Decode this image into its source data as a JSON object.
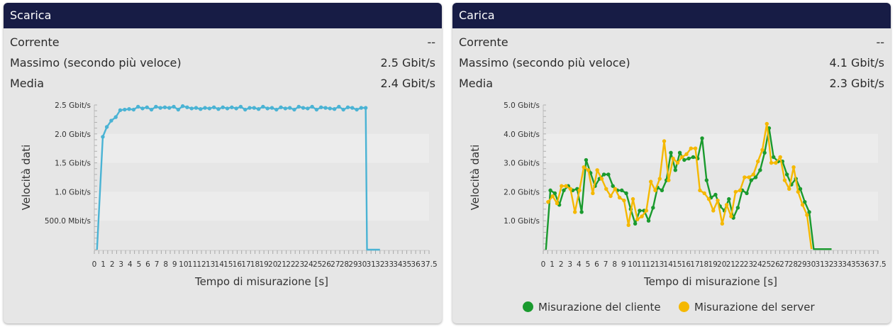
{
  "panels": {
    "download": {
      "title": "Scarica",
      "stats": [
        {
          "label": "Corrente",
          "value": "--"
        },
        {
          "label": "Massimo (secondo più veloce)",
          "value": "2.5 Gbit/s"
        },
        {
          "label": "Media",
          "value": "2.4 Gbit/s"
        }
      ]
    },
    "upload": {
      "title": "Carica",
      "stats": [
        {
          "label": "Corrente",
          "value": "--"
        },
        {
          "label": "Massimo (secondo più veloce)",
          "value": "4.1 Gbit/s"
        },
        {
          "label": "Media",
          "value": "2.3 Gbit/s"
        }
      ],
      "legend": [
        {
          "label": "Misurazione del cliente",
          "color": "#1a9a2e"
        },
        {
          "label": "Misurazione del server",
          "color": "#f5b800"
        }
      ]
    }
  },
  "chart_data": [
    {
      "type": "line",
      "xlabel": "Tempo di misurazione [s]",
      "ylabel": "Velocità dati",
      "xlim": [
        0,
        37.5
      ],
      "ylim": [
        0,
        2.5
      ],
      "y_ticks": [
        {
          "value": 0.5,
          "label": "500.0 Mbit/s"
        },
        {
          "value": 1.0,
          "label": "1.0 Gbit/s"
        },
        {
          "value": 1.5,
          "label": "1.5 Gbit/s"
        },
        {
          "value": 2.0,
          "label": "2.0 Gbit/s"
        },
        {
          "value": 2.5,
          "label": "2.5 Gbit/s"
        }
      ],
      "x_tick_labels": [
        "0",
        "1",
        "2",
        "3",
        "4",
        "5",
        "6",
        "7",
        "8",
        "9",
        "10",
        "11",
        "12",
        "13",
        "14",
        "15",
        "16",
        "17",
        "18",
        "19",
        "20",
        "21",
        "22",
        "23",
        "24",
        "25",
        "26",
        "27",
        "28",
        "29",
        "30",
        "31",
        "32",
        "33",
        "34",
        "35",
        "36",
        "37.5"
      ],
      "color": "#4ab3d4",
      "series": [
        {
          "x": [
            0.3,
            0.95,
            1.4,
            1.9,
            2.4,
            2.9,
            3.4,
            3.9,
            4.4,
            4.9,
            5.4,
            5.9,
            6.4,
            6.9,
            7.4,
            7.9,
            8.4,
            8.9,
            9.4,
            9.9,
            10.4,
            10.9,
            11.4,
            11.9,
            12.4,
            12.9,
            13.4,
            13.9,
            14.4,
            14.9,
            15.4,
            15.9,
            16.4,
            16.9,
            17.4,
            17.9,
            18.4,
            18.9,
            19.4,
            19.9,
            20.4,
            20.9,
            21.4,
            21.9,
            22.4,
            22.9,
            23.4,
            23.9,
            24.4,
            24.9,
            25.4,
            25.9,
            26.4,
            26.9,
            27.4,
            27.9,
            28.4,
            28.9,
            29.4,
            29.9,
            30.4,
            30.55,
            31.2,
            32
          ],
          "values": [
            0,
            1.95,
            2.12,
            2.23,
            2.29,
            2.41,
            2.42,
            2.43,
            2.42,
            2.47,
            2.44,
            2.46,
            2.42,
            2.47,
            2.45,
            2.46,
            2.45,
            2.47,
            2.42,
            2.48,
            2.46,
            2.44,
            2.45,
            2.43,
            2.45,
            2.44,
            2.46,
            2.43,
            2.46,
            2.44,
            2.46,
            2.44,
            2.47,
            2.42,
            2.45,
            2.45,
            2.43,
            2.47,
            2.44,
            2.45,
            2.42,
            2.46,
            2.44,
            2.45,
            2.42,
            2.47,
            2.45,
            2.44,
            2.47,
            2.42,
            2.46,
            2.45,
            2.44,
            2.43,
            2.47,
            2.42,
            2.46,
            2.45,
            2.42,
            2.45,
            2.45,
            0,
            0,
            0
          ]
        }
      ]
    },
    {
      "type": "line",
      "xlabel": "Tempo di misurazione [s]",
      "ylabel": "Velocità dati",
      "xlim": [
        0,
        37.5
      ],
      "ylim": [
        0,
        5
      ],
      "y_ticks": [
        {
          "value": 1,
          "label": "1.0 Gbit/s"
        },
        {
          "value": 2,
          "label": "2.0 Gbit/s"
        },
        {
          "value": 3,
          "label": "3.0 Gbit/s"
        },
        {
          "value": 4,
          "label": "4.0 Gbit/s"
        },
        {
          "value": 5,
          "label": "5.0 Gbit/s"
        }
      ],
      "x_tick_labels": [
        "0",
        "1",
        "2",
        "3",
        "4",
        "5",
        "6",
        "7",
        "8",
        "9",
        "10",
        "11",
        "12",
        "13",
        "14",
        "15",
        "16",
        "17",
        "18",
        "19",
        "20",
        "21",
        "22",
        "23",
        "24",
        "25",
        "26",
        "27",
        "28",
        "29",
        "30",
        "31",
        "32",
        "33",
        "34",
        "35",
        "36",
        "37.5"
      ],
      "series": [
        {
          "name": "Misurazione del cliente",
          "color": "#1a9a2e",
          "x": [
            0.3,
            0.8,
            1.3,
            1.8,
            2.3,
            2.8,
            3.3,
            3.8,
            4.3,
            4.8,
            5.3,
            5.8,
            6.3,
            6.8,
            7.3,
            7.8,
            8.3,
            8.8,
            9.3,
            9.8,
            10.3,
            10.8,
            11.3,
            11.8,
            12.3,
            12.8,
            13.3,
            13.8,
            14.3,
            14.8,
            15.3,
            15.8,
            16.3,
            16.8,
            17.3,
            17.8,
            18.3,
            18.8,
            19.3,
            19.8,
            20.3,
            20.8,
            21.3,
            21.8,
            22.3,
            22.8,
            23.3,
            23.8,
            24.3,
            24.8,
            25.3,
            25.8,
            26.3,
            26.8,
            27.3,
            27.8,
            28.3,
            28.8,
            29.3,
            29.8,
            30.3,
            30.8,
            31.3,
            31.8,
            32.3
          ],
          "values": [
            0,
            2.05,
            1.95,
            1.55,
            2.05,
            2.2,
            2.05,
            2.1,
            1.3,
            3.1,
            2.65,
            2.2,
            2.45,
            2.6,
            2.6,
            2.2,
            2.05,
            2.05,
            1.95,
            1.4,
            0.9,
            1.35,
            1.35,
            1.0,
            1.45,
            2.15,
            2.05,
            2.4,
            3.35,
            2.75,
            3.35,
            3.1,
            3.15,
            3.2,
            3.15,
            3.85,
            2.4,
            1.8,
            1.9,
            1.5,
            1.35,
            1.75,
            1.1,
            1.45,
            2.05,
            1.95,
            2.4,
            2.5,
            2.75,
            3.35,
            4.2,
            3.2,
            3.05,
            3.05,
            2.6,
            2.25,
            2.45,
            2.1,
            1.65,
            1.3,
            0.02,
            0.02,
            0.02,
            0.02,
            0.02
          ]
        },
        {
          "name": "Misurazione del server",
          "color": "#f5b800",
          "x": [
            0.55,
            1.05,
            1.55,
            2.05,
            2.55,
            3.05,
            3.55,
            4.05,
            4.55,
            5.05,
            5.55,
            6.05,
            6.55,
            7.05,
            7.55,
            8.05,
            8.55,
            9.05,
            9.55,
            10.05,
            10.55,
            11.05,
            11.55,
            12.05,
            12.55,
            13.05,
            13.55,
            14.05,
            14.55,
            15.05,
            15.55,
            16.05,
            16.55,
            17.05,
            17.55,
            18.05,
            18.55,
            19.05,
            19.55,
            20.05,
            20.55,
            21.05,
            21.55,
            22.05,
            22.55,
            23.05,
            23.55,
            24.05,
            24.55,
            25.05,
            25.55,
            26.05,
            26.55,
            27.05,
            27.55,
            28.05,
            28.55,
            29.05,
            29.55,
            30.05
          ],
          "values": [
            1.65,
            1.85,
            1.6,
            2.2,
            2.2,
            2.1,
            1.3,
            2.05,
            2.85,
            2.75,
            1.95,
            2.75,
            2.45,
            2.1,
            1.85,
            2.1,
            1.8,
            1.7,
            0.85,
            1.75,
            1.05,
            1.15,
            1.35,
            2.35,
            2.05,
            2.45,
            3.75,
            2.4,
            3.15,
            3.0,
            3.2,
            3.3,
            3.5,
            3.5,
            2.05,
            1.95,
            1.75,
            1.35,
            1.7,
            0.9,
            1.55,
            1.15,
            2.0,
            2.05,
            2.5,
            2.5,
            2.6,
            3.05,
            3.45,
            4.35,
            3.0,
            3.0,
            3.2,
            2.4,
            2.1,
            2.85,
            2.0,
            1.55,
            1.2,
            0.02
          ]
        }
      ]
    }
  ]
}
